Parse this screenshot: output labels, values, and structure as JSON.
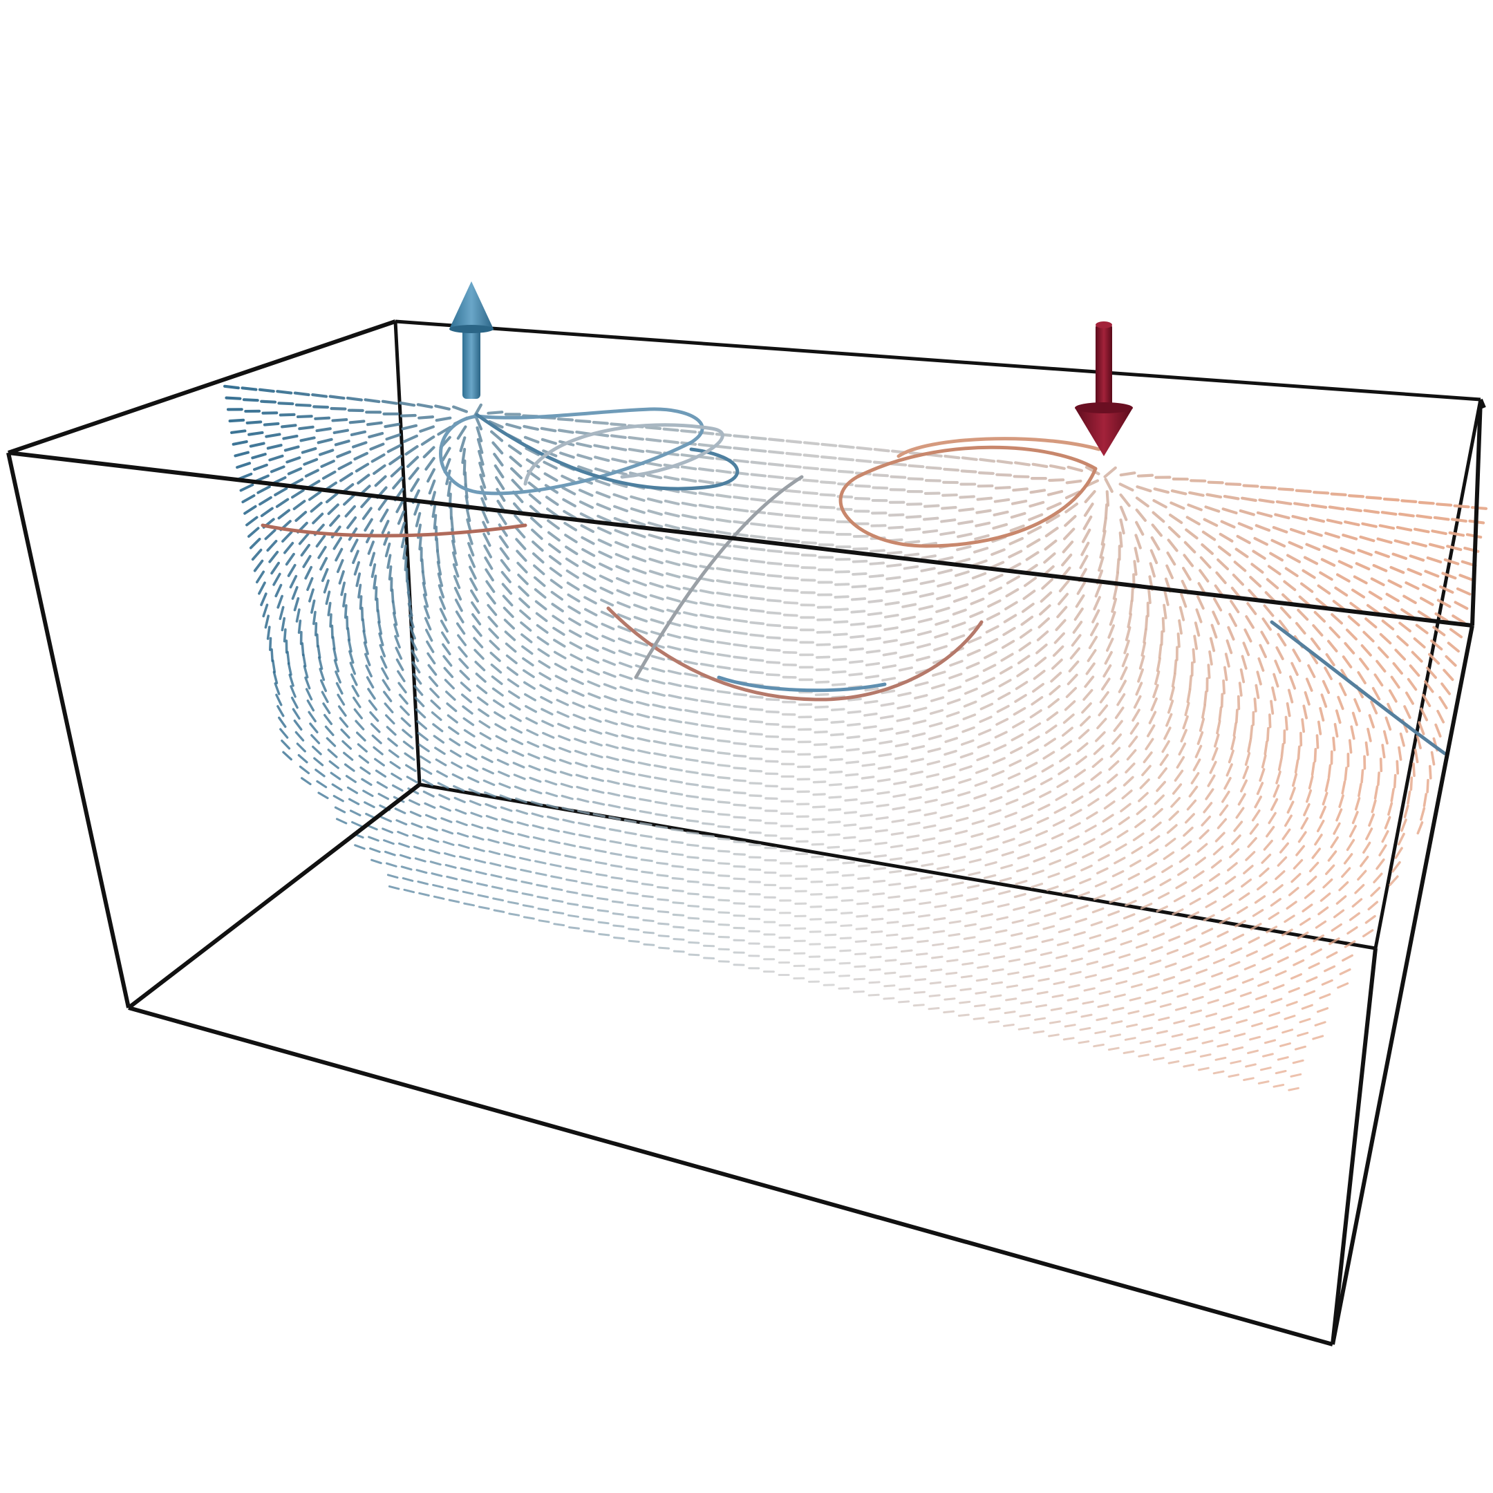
{
  "scene": {
    "background": "#ffffff",
    "frame_color": "#111111",
    "colors": {
      "blue_dark": "#2e6a8e",
      "blue_light": "#8fb2c9",
      "neutral": "#c8c8c8",
      "red_light": "#e6a98c",
      "red_dark": "#8b1a2b"
    },
    "markers": [
      {
        "name": "source-arrow-up",
        "direction": "up",
        "color": "#3f87ad"
      },
      {
        "name": "sink-arrow-down",
        "direction": "down",
        "color": "#7d1228"
      }
    ],
    "grid": {
      "cols": 72,
      "rows": 44
    }
  }
}
